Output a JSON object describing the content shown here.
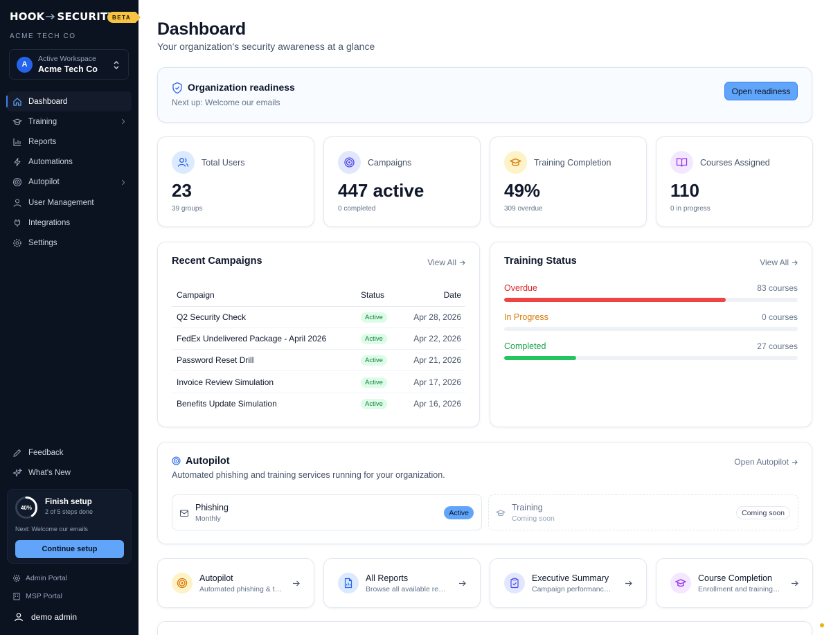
{
  "sidebar": {
    "brand_left": "HOOK",
    "brand_right": "SECURITY",
    "beta": "BETA",
    "org": "ACME TECH CO",
    "workspace": {
      "avatar": "A",
      "label": "Active Workspace",
      "name": "Acme Tech Co"
    },
    "nav": [
      {
        "label": "Dashboard",
        "icon": "home-icon",
        "active": true
      },
      {
        "label": "Training",
        "icon": "graduation-cap-icon",
        "chevron": true
      },
      {
        "label": "Reports",
        "icon": "bar-chart-icon"
      },
      {
        "label": "Automations",
        "icon": "lightning-icon"
      },
      {
        "label": "Autopilot",
        "icon": "target-icon",
        "chevron": true
      },
      {
        "label": "User Management",
        "icon": "user-icon"
      },
      {
        "label": "Integrations",
        "icon": "plug-icon"
      },
      {
        "label": "Settings",
        "icon": "gear-icon"
      }
    ],
    "bottom_nav": [
      {
        "label": "Feedback",
        "icon": "pencil-icon"
      },
      {
        "label": "What's New",
        "icon": "sparkle-icon"
      }
    ],
    "setup": {
      "progress_label": "40%",
      "progress": 0.4,
      "title": "Finish setup",
      "subtitle": "2 of 5 steps done",
      "next": "Next: Welcome our emails",
      "button": "Continue setup"
    },
    "admin_portal": "Admin Portal",
    "msp_portal": "MSP Portal",
    "user": "demo admin"
  },
  "header": {
    "title": "Dashboard",
    "subtitle": "Your organization's security awareness at a glance"
  },
  "readiness": {
    "title": "Organization readiness",
    "subtitle": "Next up: Welcome our emails",
    "button": "Open readiness"
  },
  "stats": [
    {
      "label": "Total Users",
      "value": "23",
      "sub": "39 groups",
      "icon": "users-icon",
      "bg": "#dbeafe",
      "color": "#2563eb"
    },
    {
      "label": "Campaigns",
      "value": "447 active",
      "sub": "0 completed",
      "icon": "target-icon",
      "bg": "#e0e7ff",
      "color": "#4f46e5"
    },
    {
      "label": "Training Completion",
      "value": "49%",
      "sub": "309 overdue",
      "icon": "graduation-cap-icon",
      "bg": "#fef3c7",
      "color": "#d97706"
    },
    {
      "label": "Courses Assigned",
      "value": "110",
      "sub": "0 in progress",
      "icon": "book-icon",
      "bg": "#f3e8ff",
      "color": "#9333ea"
    }
  ],
  "recent_campaigns": {
    "title": "Recent Campaigns",
    "view_all": "View All",
    "columns": [
      "Campaign",
      "Status",
      "Date"
    ],
    "rows": [
      {
        "name": "Q2 Security Check",
        "status": "Active",
        "date": "Apr 28, 2026"
      },
      {
        "name": "FedEx Undelivered Package - April 2026",
        "status": "Active",
        "date": "Apr 22, 2026"
      },
      {
        "name": "Password Reset Drill",
        "status": "Active",
        "date": "Apr 21, 2026"
      },
      {
        "name": "Invoice Review Simulation",
        "status": "Active",
        "date": "Apr 17, 2026"
      },
      {
        "name": "Benefits Update Simulation",
        "status": "Active",
        "date": "Apr 16, 2026"
      }
    ]
  },
  "training_status": {
    "title": "Training Status",
    "view_all": "View All",
    "rows": [
      {
        "label": "Overdue",
        "count": "83 courses",
        "fraction": 0.755,
        "color": "#ef4444",
        "label_color": "#dc2626"
      },
      {
        "label": "In Progress",
        "count": "0 courses",
        "fraction": 0,
        "color": "#f59e0b",
        "label_color": "#d97706"
      },
      {
        "label": "Completed",
        "count": "27 courses",
        "fraction": 0.245,
        "color": "#22c55e",
        "label_color": "#16a34a"
      }
    ]
  },
  "autopilot": {
    "title": "Autopilot",
    "subtitle": "Automated phishing and training services running for your organization.",
    "open": "Open Autopilot",
    "services": [
      {
        "title": "Phishing",
        "sub": "Monthly",
        "badge": "Active",
        "icon": "mail-icon"
      },
      {
        "title": "Training",
        "sub": "Coming soon",
        "badge": "Coming soon",
        "icon": "graduation-cap-icon"
      }
    ]
  },
  "quick_links": [
    {
      "title": "Autopilot",
      "sub": "Automated phishing & training",
      "icon": "target-icon",
      "bg": "#fef3c7",
      "color": "#d97706"
    },
    {
      "title": "All Reports",
      "sub": "Browse all available reports",
      "icon": "document-icon",
      "bg": "#dbeafe",
      "color": "#2563eb"
    },
    {
      "title": "Executive Summary",
      "sub": "Campaign performance overview",
      "icon": "clipboard-icon",
      "bg": "#e0e7ff",
      "color": "#4f46e5"
    },
    {
      "title": "Course Completion",
      "sub": "Enrollment and training progress",
      "icon": "graduation-cap-icon",
      "bg": "#f3e8ff",
      "color": "#9333ea"
    }
  ]
}
